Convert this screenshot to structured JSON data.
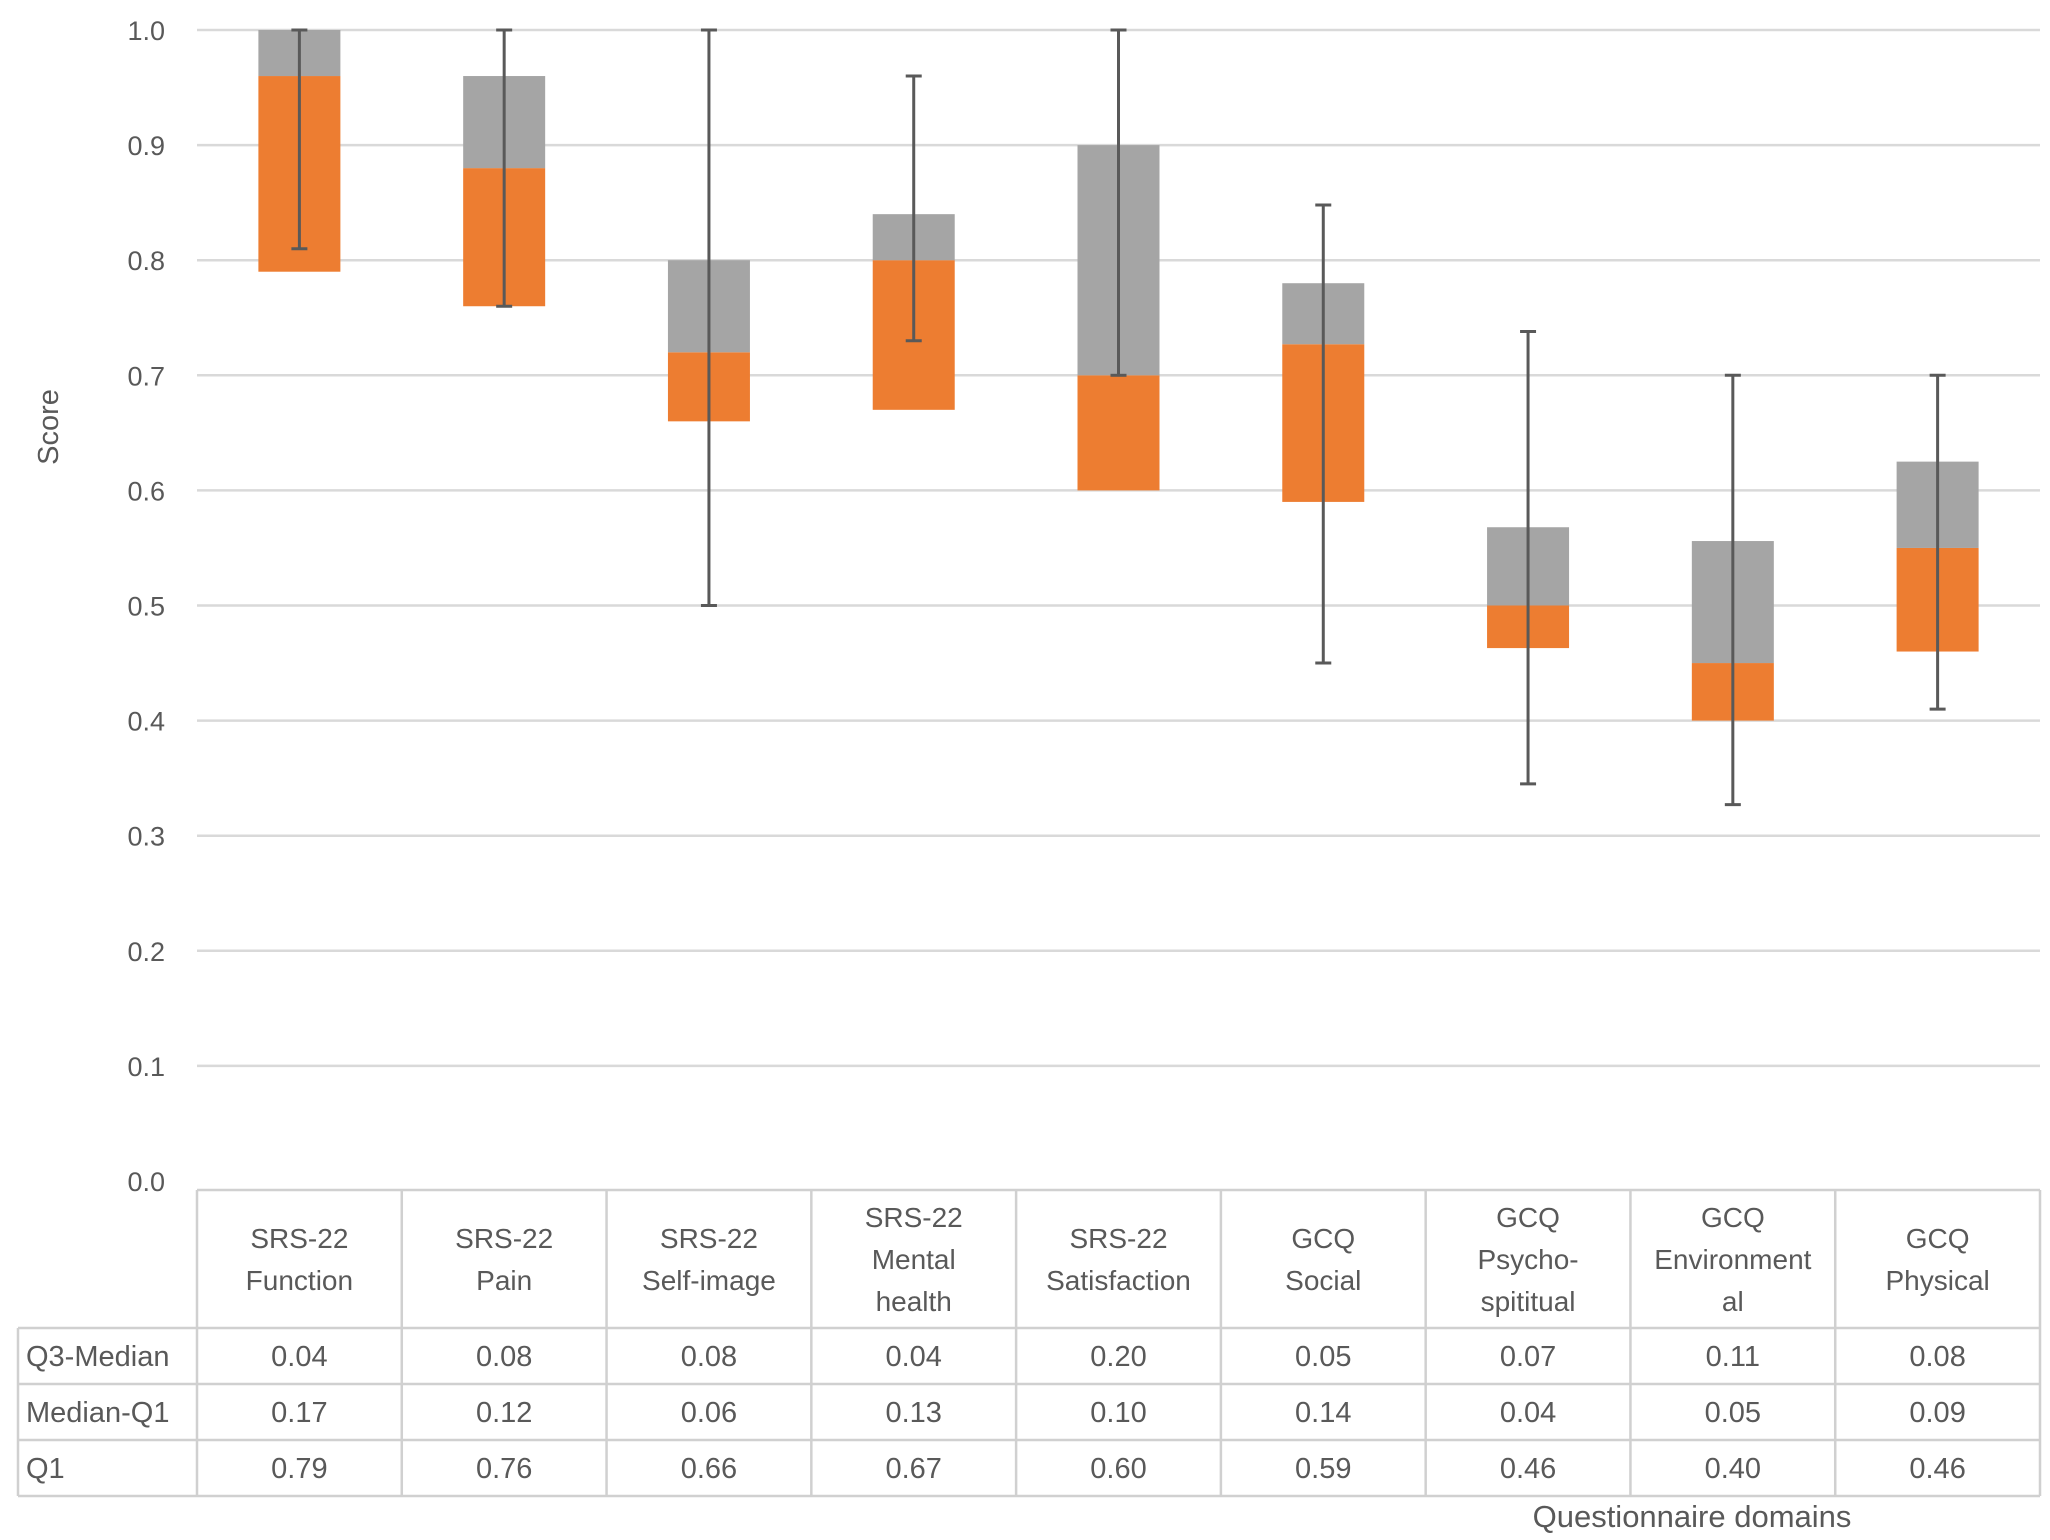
{
  "chart_data": {
    "type": "bar",
    "subtype": "stacked-box-plot",
    "ylabel": "Score",
    "xlabel": "Questionnaire domains",
    "ylim": [
      0,
      1.0
    ],
    "yticks": [
      "0.0",
      "0.1",
      "0.2",
      "0.3",
      "0.4",
      "0.5",
      "0.6",
      "0.7",
      "0.8",
      "0.9",
      "1.0"
    ],
    "grid": true,
    "categories": [
      [
        "SRS-22",
        "Function"
      ],
      [
        "SRS-22",
        "Pain"
      ],
      [
        "SRS-22",
        "Self-image"
      ],
      [
        "SRS-22",
        "Mental",
        "health"
      ],
      [
        "SRS-22",
        "Satisfaction"
      ],
      [
        "GCQ",
        "Social"
      ],
      [
        "GCQ",
        "Psycho-",
        "spititual"
      ],
      [
        "GCQ",
        "Environment",
        "al"
      ],
      [
        "GCQ",
        "Physical"
      ]
    ],
    "series": [
      {
        "name": "Q1",
        "color": "none",
        "values": [
          0.79,
          0.76,
          0.66,
          0.67,
          0.6,
          0.59,
          0.46,
          0.4,
          0.46
        ],
        "labels": [
          "0.79",
          "0.76",
          "0.66",
          "0.67",
          "0.60",
          "0.59",
          "0.46",
          "0.40",
          "0.46"
        ]
      },
      {
        "name": "Median-Q1",
        "color": "#ED7D31",
        "values": [
          0.17,
          0.12,
          0.06,
          0.13,
          0.1,
          0.14,
          0.04,
          0.05,
          0.09
        ],
        "labels": [
          "0.17",
          "0.12",
          "0.06",
          "0.13",
          "0.10",
          "0.14",
          "0.04",
          "0.05",
          "0.09"
        ]
      },
      {
        "name": "Q3-Median",
        "color": "#A5A5A5",
        "values": [
          0.04,
          0.08,
          0.08,
          0.04,
          0.2,
          0.05,
          0.07,
          0.11,
          0.08
        ],
        "labels": [
          "0.04",
          "0.08",
          "0.08",
          "0.04",
          "0.20",
          "0.05",
          "0.07",
          "0.11",
          "0.08"
        ]
      }
    ],
    "table_rows": [
      "Q3-Median",
      "Median-Q1",
      "Q1"
    ],
    "boxes": {
      "q1": [
        0.79,
        0.76,
        0.66,
        0.67,
        0.6,
        0.59,
        0.463,
        0.4,
        0.46
      ],
      "median": [
        0.96,
        0.88,
        0.72,
        0.8,
        0.7,
        0.727,
        0.5,
        0.45,
        0.55
      ],
      "q3": [
        1.0,
        0.96,
        0.8,
        0.84,
        0.9,
        0.78,
        0.568,
        0.556,
        0.625
      ]
    },
    "whiskers": {
      "low": [
        0.81,
        0.76,
        0.5,
        0.73,
        0.7,
        0.45,
        0.345,
        0.327,
        0.41
      ],
      "high": [
        1.0,
        1.0,
        1.0,
        0.96,
        1.0,
        0.848,
        0.738,
        0.7,
        0.7
      ]
    }
  }
}
